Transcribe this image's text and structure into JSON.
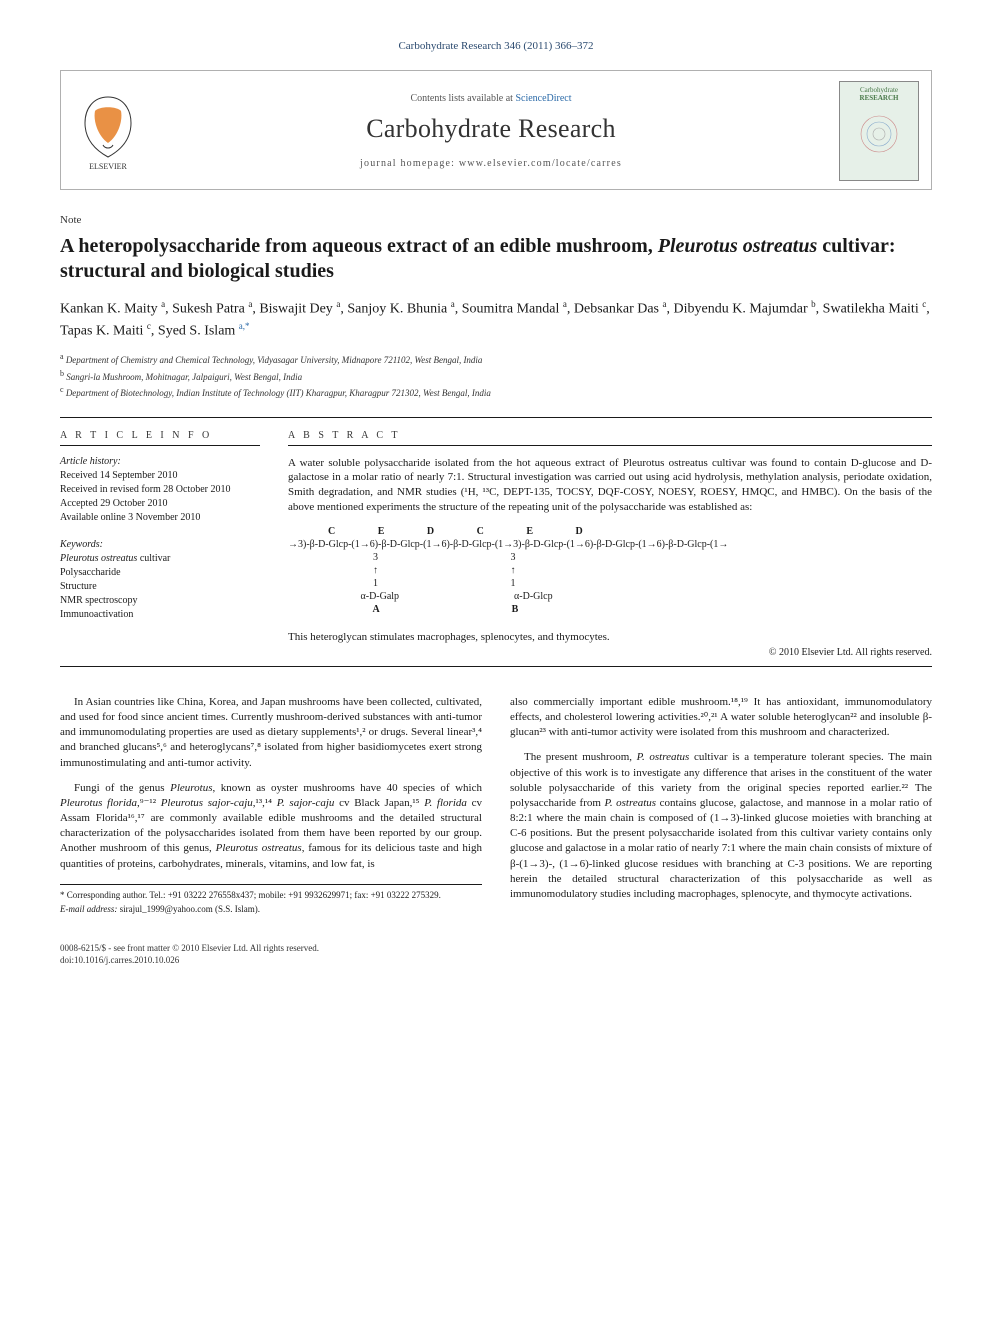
{
  "citation": "Carbohydrate Research 346 (2011) 366–372",
  "header": {
    "contents_prefix": "Contents lists available at ",
    "contents_link": "ScienceDirect",
    "journal": "Carbohydrate Research",
    "homepage_prefix": "journal homepage: ",
    "homepage": "www.elsevier.com/locate/carres",
    "publisher": "ELSEVIER",
    "cover_title1": "Carbohydrate",
    "cover_title2": "RESEARCH"
  },
  "note_label": "Note",
  "title_html": "A heteropolysaccharide from aqueous extract of an edible mushroom, <em>Pleurotus ostreatus</em> cultivar: structural and biological studies",
  "authors_html": "Kankan K. Maity <sup>a</sup>, Sukesh Patra <sup>a</sup>, Biswajit Dey <sup>a</sup>, Sanjoy K. Bhunia <sup>a</sup>, Soumitra Mandal <sup>a</sup>, Debsankar Das <sup>a</sup>, Dibyendu K. Majumdar <sup>b</sup>, Swatilekha Maiti <sup>c</sup>, Tapas K. Maiti <sup>c</sup>, Syed S. Islam <sup class=\"corr\">a,*</sup>",
  "affiliations": [
    {
      "sup": "a",
      "text": "Department of Chemistry and Chemical Technology, Vidyasagar University, Midnapore 721102, West Bengal, India"
    },
    {
      "sup": "b",
      "text": "Sangri-la Mushroom, Mohitnagar, Jalpaiguri, West Bengal, India"
    },
    {
      "sup": "c",
      "text": "Department of Biotechnology, Indian Institute of Technology (IIT) Kharagpur, Kharagpur 721302, West Bengal, India"
    }
  ],
  "info": {
    "heading": "A R T I C L E   I N F O",
    "history_label": "Article history:",
    "history": [
      "Received 14 September 2010",
      "Received in revised form 28 October 2010",
      "Accepted 29 October 2010",
      "Available online 3 November 2010"
    ],
    "keywords_label": "Keywords:",
    "keywords": [
      "Pleurotus ostreatus cultivar",
      "Polysaccharide",
      "Structure",
      "NMR spectroscopy",
      "Immunoactivation"
    ]
  },
  "abstract": {
    "heading": "A B S T R A C T",
    "p1": "A water soluble polysaccharide isolated from the hot aqueous extract of Pleurotus ostreatus cultivar was found to contain D-glucose and D-galactose in a molar ratio of nearly 7:1. Structural investigation was carried out using acid hydrolysis, methylation analysis, periodate oxidation, Smith degradation, and NMR studies (¹H, ¹³C, DEPT-135, TOCSY, DQF-COSY, NOESY, ROESY, HMQC, and HMBC). On the basis of the above mentioned experiments the structure of the repeating unit of the polysaccharide was established as:",
    "structure": {
      "top_labels": "                C                 E                 D                 C                 E                 D",
      "main_chain": "→3)-β-D-Glcp-(1→6)-β-D-Glcp-(1→6)-β-D-Glcp-(1→3)-β-D-Glcp-(1→6)-β-D-Glcp-(1→6)-β-D-Glcp-(1→",
      "branch_pos": "                                  3                                                     3",
      "arrows": "                                  ↑                                                     ↑",
      "branch_link": "                                  1                                                     1",
      "branch_res": "                             α-D-Galp                                              α-D-Glcp",
      "bottom_labels": "                                  A                                                     B"
    },
    "tail": "This heteroglycan stimulates macrophages, splenocytes, and thymocytes.",
    "copyright": "© 2010 Elsevier Ltd. All rights reserved."
  },
  "body": {
    "p1": "In Asian countries like China, Korea, and Japan mushrooms have been collected, cultivated, and used for food since ancient times. Currently mushroom-derived substances with anti-tumor and immunomodulating properties are used as dietary supplements¹,² or drugs. Several linear³,⁴ and branched glucans⁵,⁶ and heteroglycans⁷,⁸ isolated from higher basidiomycetes exert strong immunostimulating and anti-tumor activity.",
    "p2_html": "Fungi of the genus <em>Pleurotus</em>, known as oyster mushrooms have 40 species of which <em>Pleurotus florida</em>,⁹⁻¹² <em>Pleurotus sajor-caju</em>,¹³,¹⁴ <em>P. sajor-caju</em> cv Black Japan,¹⁵ <em>P. florida</em> cv Assam Florida¹⁶,¹⁷ are commonly available edible mushrooms and the detailed structural characterization of the polysaccharides isolated from them have been reported by our group. Another mushroom of this genus, <em>Pleurotus ostreatus</em>, famous for its delicious taste and high quantities of proteins, carbohydrates, minerals, vitamins, and low fat, is",
    "p3_html": "also commercially important edible mushroom.¹⁸,¹⁹ It has antioxidant, immunomodulatory effects, and cholesterol lowering activities.²⁰,²¹ A water soluble heteroglycan²² and insoluble β-glucan²³ with anti-tumor activity were isolated from this mushroom and characterized.",
    "p4_html": "The present mushroom, <em>P. ostreatus</em> cultivar is a temperature tolerant species. The main objective of this work is to investigate any difference that arises in the constituent of the water soluble polysaccharide of this variety from the original species reported earlier.²² The polysaccharide from <em>P. ostreatus</em> contains glucose, galactose, and mannose in a molar ratio of 8:2:1 where the main chain is composed of (1→3)-linked glucose moieties with branching at C-6 positions. But the present polysaccharide isolated from this cultivar variety contains only glucose and galactose in a molar ratio of nearly 7:1 where the main chain consists of mixture of β-(1→3)-, (1→6)-linked glucose residues with branching at C-3 positions. We are reporting herein the detailed structural characterization of this polysaccharide as well as immunomodulatory studies including macrophages, splenocyte, and thymocyte activations."
  },
  "footnote": {
    "corr": "* Corresponding author. Tel.: +91 03222 276558x437; mobile: +91 9932629971; fax: +91 03222 275329.",
    "email_label": "E-mail address:",
    "email": "sirajul_1999@yahoo.com",
    "email_tail": "(S.S. Islam)."
  },
  "footer": {
    "line1": "0008-6215/$ - see front matter © 2010 Elsevier Ltd. All rights reserved.",
    "line2": "doi:10.1016/j.carres.2010.10.026"
  },
  "colors": {
    "link": "#2b6aa8",
    "text": "#1a1a1a",
    "muted": "#555555",
    "border": "#b0b0b0",
    "elsevier_orange": "#e57e25"
  }
}
